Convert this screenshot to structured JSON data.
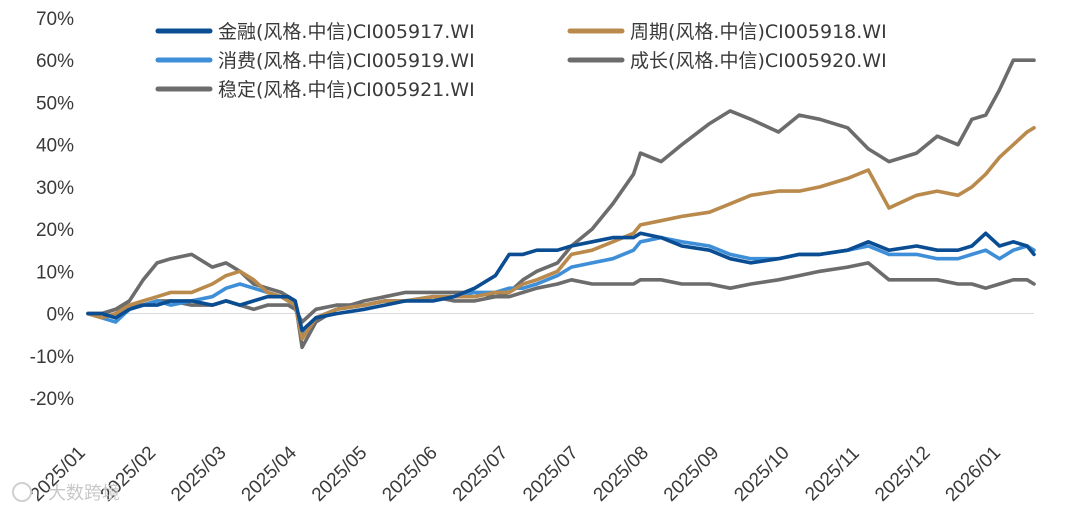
{
  "chart_data": {
    "type": "line",
    "title": "",
    "xlabel": "",
    "ylabel": "",
    "ylim": [
      -20,
      70
    ],
    "ytick_values": [
      -20,
      -10,
      0,
      10,
      20,
      30,
      40,
      50,
      60,
      70
    ],
    "ytick_labels": [
      "-20%",
      "-10%",
      "0%",
      "10%",
      "20%",
      "30%",
      "40%",
      "50%",
      "60%",
      "70%"
    ],
    "x_tick_labels": [
      "2025/01",
      "2025/02",
      "2025/03",
      "2025/04",
      "2025/05",
      "2025/06",
      "2025/07",
      "2025/07",
      "2025/08",
      "2025/09",
      "2025/10",
      "2025/11",
      "2025/12",
      "2026/01"
    ],
    "x_range": [
      0,
      13.7
    ],
    "legend_position": "top",
    "grid": false,
    "series": [
      {
        "name": "金融(风格.中信)CI005917.WI",
        "color": "#0a4d92",
        "x": [
          0,
          0.2,
          0.4,
          0.6,
          0.8,
          1,
          1.2,
          1.5,
          1.8,
          2,
          2.2,
          2.4,
          2.6,
          2.8,
          2.9,
          3,
          3.1,
          3.3,
          3.6,
          4,
          4.3,
          4.6,
          5,
          5.3,
          5.6,
          5.9,
          6.1,
          6.3,
          6.5,
          6.8,
          7,
          7.3,
          7.6,
          7.9,
          8,
          8.3,
          8.6,
          9,
          9.3,
          9.6,
          10,
          10.3,
          10.6,
          11,
          11.3,
          11.6,
          12,
          12.3,
          12.6,
          12.8,
          13,
          13.2,
          13.4,
          13.6,
          13.7
        ],
        "values": [
          0,
          0,
          -1,
          1,
          2,
          2,
          3,
          3,
          2,
          3,
          2,
          3,
          4,
          4,
          4,
          3,
          -4,
          -1,
          0,
          1,
          2,
          3,
          3,
          4,
          6,
          9,
          14,
          14,
          15,
          15,
          16,
          17,
          18,
          18,
          19,
          18,
          16,
          15,
          13,
          12,
          13,
          14,
          14,
          15,
          17,
          15,
          16,
          15,
          15,
          16,
          19,
          16,
          17,
          16,
          14
        ]
      },
      {
        "name": "周期(风格.中信)CI005918.WI",
        "color": "#b98a4c",
        "x": [
          0,
          0.2,
          0.4,
          0.6,
          0.8,
          1,
          1.2,
          1.5,
          1.8,
          2,
          2.2,
          2.4,
          2.6,
          2.8,
          2.9,
          3,
          3.1,
          3.3,
          3.6,
          4,
          4.3,
          4.6,
          5,
          5.3,
          5.6,
          5.9,
          6.1,
          6.3,
          6.5,
          6.8,
          7,
          7.3,
          7.6,
          7.9,
          8,
          8.3,
          8.6,
          9,
          9.3,
          9.6,
          10,
          10.3,
          10.6,
          11,
          11.3,
          11.6,
          12,
          12.3,
          12.6,
          12.8,
          13,
          13.2,
          13.4,
          13.6,
          13.7
        ],
        "values": [
          0,
          -1,
          0,
          2,
          3,
          4,
          5,
          5,
          7,
          9,
          10,
          8,
          5,
          4,
          3,
          2,
          -6,
          -1,
          1,
          2,
          3,
          3,
          4,
          4,
          4,
          5,
          5,
          7,
          8,
          10,
          14,
          15,
          17,
          19,
          21,
          22,
          23,
          24,
          26,
          28,
          29,
          29,
          30,
          32,
          34,
          25,
          28,
          29,
          28,
          30,
          33,
          37,
          40,
          43,
          44
        ]
      },
      {
        "name": "消费(风格.中信)CI005919.WI",
        "color": "#3f8fd8",
        "x": [
          0,
          0.2,
          0.4,
          0.6,
          0.8,
          1,
          1.2,
          1.5,
          1.8,
          2,
          2.2,
          2.4,
          2.6,
          2.8,
          2.9,
          3,
          3.1,
          3.3,
          3.6,
          4,
          4.3,
          4.6,
          5,
          5.3,
          5.6,
          5.9,
          6.1,
          6.3,
          6.5,
          6.8,
          7,
          7.3,
          7.6,
          7.9,
          8,
          8.3,
          8.6,
          9,
          9.3,
          9.6,
          10,
          10.3,
          10.6,
          11,
          11.3,
          11.6,
          12,
          12.3,
          12.6,
          12.8,
          13,
          13.2,
          13.4,
          13.6,
          13.7
        ],
        "values": [
          0,
          -1,
          -2,
          1,
          2,
          3,
          2,
          3,
          4,
          6,
          7,
          6,
          5,
          4,
          3,
          2,
          -5,
          -1,
          1,
          2,
          3,
          3,
          4,
          4,
          5,
          5,
          6,
          6,
          7,
          9,
          11,
          12,
          13,
          15,
          17,
          18,
          17,
          16,
          14,
          13,
          13,
          14,
          14,
          15,
          16,
          14,
          14,
          13,
          13,
          14,
          15,
          13,
          15,
          16,
          15
        ]
      },
      {
        "name": "成长(风格.中信)CI005920.WI",
        "color": "#6c6c6c",
        "x": [
          0,
          0.2,
          0.4,
          0.6,
          0.8,
          1,
          1.2,
          1.5,
          1.8,
          2,
          2.2,
          2.4,
          2.6,
          2.8,
          2.9,
          3,
          3.1,
          3.3,
          3.6,
          4,
          4.3,
          4.6,
          5,
          5.3,
          5.6,
          5.9,
          6.1,
          6.3,
          6.5,
          6.8,
          7,
          7.3,
          7.6,
          7.9,
          8,
          8.3,
          8.6,
          9,
          9.3,
          9.6,
          10,
          10.3,
          10.6,
          11,
          11.3,
          11.6,
          12,
          12.3,
          12.6,
          12.8,
          13,
          13.2,
          13.4,
          13.6,
          13.7
        ],
        "values": [
          0,
          0,
          1,
          3,
          8,
          12,
          13,
          14,
          11,
          12,
          10,
          7,
          6,
          5,
          4,
          3,
          -8,
          -2,
          1,
          3,
          4,
          5,
          5,
          5,
          5,
          4,
          5,
          8,
          10,
          12,
          16,
          20,
          26,
          33,
          38,
          36,
          40,
          45,
          48,
          46,
          43,
          47,
          46,
          44,
          39,
          36,
          38,
          42,
          40,
          46,
          47,
          53,
          60,
          60,
          60
        ]
      },
      {
        "name": "稳定(风格.中信)CI005921.WI",
        "color": "#6c6c6c",
        "x": [
          0,
          0.2,
          0.4,
          0.6,
          0.8,
          1,
          1.2,
          1.5,
          1.8,
          2,
          2.2,
          2.4,
          2.6,
          2.8,
          2.9,
          3,
          3.1,
          3.3,
          3.6,
          4,
          4.3,
          4.6,
          5,
          5.3,
          5.6,
          5.9,
          6.1,
          6.3,
          6.5,
          6.8,
          7,
          7.3,
          7.6,
          7.9,
          8,
          8.3,
          8.6,
          9,
          9.3,
          9.6,
          10,
          10.3,
          10.6,
          11,
          11.3,
          11.6,
          12,
          12.3,
          12.6,
          12.8,
          13,
          13.2,
          13.4,
          13.6,
          13.7
        ],
        "values": [
          0,
          0,
          1,
          2,
          2,
          3,
          3,
          2,
          2,
          3,
          2,
          1,
          2,
          2,
          2,
          1,
          -2,
          1,
          2,
          2,
          3,
          3,
          4,
          3,
          3,
          4,
          4,
          5,
          6,
          7,
          8,
          7,
          7,
          7,
          8,
          8,
          7,
          7,
          6,
          7,
          8,
          9,
          10,
          11,
          12,
          8,
          8,
          8,
          7,
          7,
          6,
          7,
          8,
          8,
          7
        ]
      }
    ],
    "watermark": "大数跨境"
  }
}
